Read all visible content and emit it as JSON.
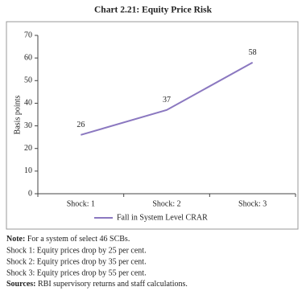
{
  "chart_data": {
    "type": "line",
    "title": "Chart 2.21: Equity Price Risk",
    "y_label": "Basis points",
    "categories": [
      "Shock: 1",
      "Shock: 2",
      "Shock: 3"
    ],
    "series": [
      {
        "name": "Fall in System Level CRAR",
        "color": "#8b78c0",
        "values": [
          26,
          37,
          58
        ]
      }
    ],
    "ylim": [
      0,
      70
    ],
    "yticks": [
      0,
      10,
      20,
      30,
      40,
      50,
      60,
      70
    ],
    "grid": false,
    "legend": "bottom"
  },
  "notes": {
    "note": {
      "label": "Note:",
      "text": "For a system of select 46 SCBs."
    },
    "lines": [
      "Shock 1: Equity prices drop by 25 per cent.",
      "Shock 2: Equity prices drop by 35 per cent.",
      "Shock 3: Equity prices drop by 55 per cent."
    ],
    "sources": {
      "label": "Sources:",
      "text": "RBI supervisory returns and staff calculations."
    }
  }
}
